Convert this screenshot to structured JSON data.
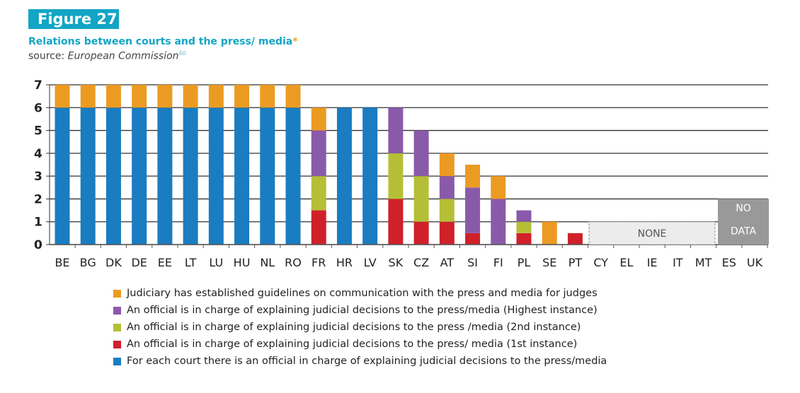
{
  "figure_label": "Figure 27",
  "title": "Relations between courts and the press/ media",
  "title_mark": "*",
  "source_prefix": "source: ",
  "source_name": "European Commission",
  "source_ref": "40",
  "chart_data": {
    "type": "bar",
    "stacked": true,
    "categories": [
      "BE",
      "BG",
      "DK",
      "DE",
      "EE",
      "LT",
      "LU",
      "HU",
      "NL",
      "RO",
      "FR",
      "HR",
      "LV",
      "SK",
      "CZ",
      "AT",
      "SI",
      "FI",
      "PL",
      "SE",
      "PT",
      "CY",
      "EL",
      "IE",
      "IT",
      "MT",
      "ES",
      "UK"
    ],
    "ylim": [
      0,
      7
    ],
    "yticks": [
      0,
      1,
      2,
      3,
      4,
      5,
      6,
      7
    ],
    "grid": true,
    "legend_placement": "bottom",
    "series": [
      {
        "name": "For each court there is an official in charge of explaining judicial decisions to the press/media",
        "color": "#1a7cc1",
        "values": [
          6,
          6,
          6,
          6,
          6,
          6,
          6,
          6,
          6,
          6,
          0,
          6,
          6,
          0,
          0,
          0,
          0,
          0,
          0,
          0,
          0,
          0,
          0,
          0,
          0,
          0,
          0,
          0
        ]
      },
      {
        "name": "An official is in charge of explaining judicial decisions to the press/ media (1st instance)",
        "color": "#d0202a",
        "values": [
          0,
          0,
          0,
          0,
          0,
          0,
          0,
          0,
          0,
          0,
          1.5,
          0,
          0,
          2,
          1,
          1,
          0.5,
          0,
          0.5,
          0,
          0.5,
          0,
          0,
          0,
          0,
          0,
          0,
          0
        ]
      },
      {
        "name": "An official is in charge of explaining judicial decisions to the press /media (2nd instance)",
        "color": "#b5bf36",
        "values": [
          0,
          0,
          0,
          0,
          0,
          0,
          0,
          0,
          0,
          0,
          1.5,
          0,
          0,
          2,
          2,
          1,
          0,
          0,
          0.5,
          0,
          0,
          0,
          0,
          0,
          0,
          0,
          0,
          0
        ]
      },
      {
        "name": "An official is in charge of explaining judicial decisions to the press/media (Highest instance)",
        "color": "#8a5aaa",
        "values": [
          0,
          0,
          0,
          0,
          0,
          0,
          0,
          0,
          0,
          0,
          2,
          0,
          0,
          2,
          2,
          1,
          2,
          2,
          0.5,
          0,
          0,
          0,
          0,
          0,
          0,
          0,
          0,
          0
        ]
      },
      {
        "name": "Judiciary has established guidelines on communication with the press and media for judges",
        "color": "#ec9b22",
        "values": [
          1,
          1,
          1,
          1,
          1,
          1,
          1,
          1,
          1,
          1,
          1,
          0,
          0,
          0,
          0,
          1,
          1,
          1,
          0,
          1,
          0,
          0,
          0,
          0,
          0,
          0,
          0,
          0
        ]
      }
    ],
    "annotations": {
      "none_label": "NONE",
      "none_categories": [
        "CY",
        "EL",
        "IE",
        "IT",
        "MT"
      ],
      "nodata_label_1": "NO",
      "nodata_label_2": "DATA",
      "nodata_categories": [
        "ES",
        "UK"
      ]
    }
  }
}
